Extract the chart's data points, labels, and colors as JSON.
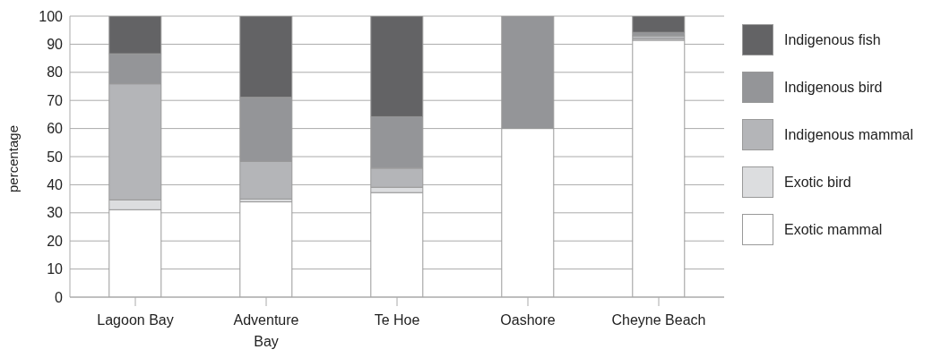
{
  "chart_data": {
    "type": "bar",
    "stacked": true,
    "ylabel": "percentage",
    "categories": [
      "Lagoon Bay",
      "Adventure Bay",
      "Te Hoe",
      "Oashore",
      "Cheyne Beach"
    ],
    "series": [
      {
        "name": "Exotic mammal",
        "color": "#ffffff",
        "values": [
          31.1,
          33.9,
          37.2,
          60,
          91.4
        ]
      },
      {
        "name": "Exotic bird",
        "color": "#dcdddf",
        "values": [
          3.5,
          1.0,
          1.9,
          0,
          0.5
        ]
      },
      {
        "name": "Indigenous mammal",
        "color": "#b4b5b8",
        "values": [
          41.3,
          13.4,
          6.8,
          0,
          1.1
        ]
      },
      {
        "name": "Indigenous bird",
        "color": "#949598",
        "values": [
          10.7,
          22.8,
          18.3,
          40,
          1.2
        ]
      },
      {
        "name": "Indigenous fish",
        "color": "#636365",
        "values": [
          13.4,
          28.9,
          35.8,
          0,
          5.8
        ]
      }
    ],
    "ylim": [
      0,
      100
    ],
    "yticks": [
      0,
      10,
      20,
      30,
      40,
      50,
      60,
      70,
      80,
      90,
      100
    ],
    "grid": "y",
    "legend": "right"
  }
}
